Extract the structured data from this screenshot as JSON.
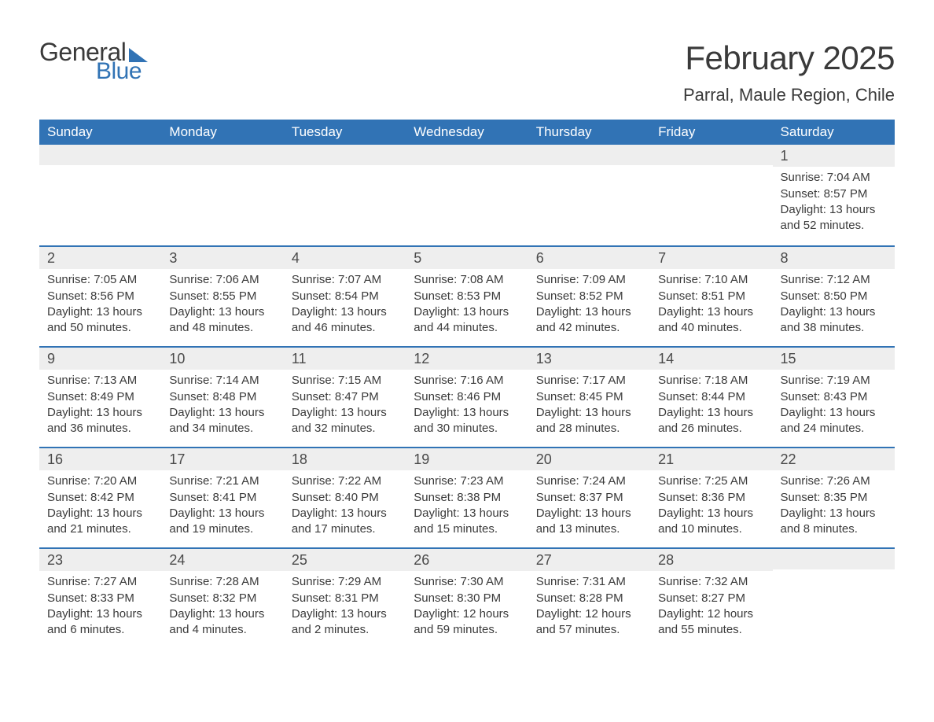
{
  "logo": {
    "word1": "General",
    "word2": "Blue"
  },
  "title": "February 2025",
  "location": "Parral, Maule Region, Chile",
  "colors": {
    "brand_blue": "#3173b5",
    "band_gray": "#eeeeee",
    "text": "#3a3a3a",
    "white": "#ffffff"
  },
  "typography": {
    "title_fontsize": 42,
    "location_fontsize": 22,
    "dow_fontsize": 17,
    "daynum_fontsize": 18,
    "body_fontsize": 15
  },
  "days_of_week": [
    "Sunday",
    "Monday",
    "Tuesday",
    "Wednesday",
    "Thursday",
    "Friday",
    "Saturday"
  ],
  "layout": {
    "first_day_column": 6,
    "num_days": 28,
    "weeks": 5
  },
  "weeks": [
    [
      null,
      null,
      null,
      null,
      null,
      null,
      {
        "n": "1",
        "sunrise": "Sunrise: 7:04 AM",
        "sunset": "Sunset: 8:57 PM",
        "daylight": "Daylight: 13 hours and 52 minutes."
      }
    ],
    [
      {
        "n": "2",
        "sunrise": "Sunrise: 7:05 AM",
        "sunset": "Sunset: 8:56 PM",
        "daylight": "Daylight: 13 hours and 50 minutes."
      },
      {
        "n": "3",
        "sunrise": "Sunrise: 7:06 AM",
        "sunset": "Sunset: 8:55 PM",
        "daylight": "Daylight: 13 hours and 48 minutes."
      },
      {
        "n": "4",
        "sunrise": "Sunrise: 7:07 AM",
        "sunset": "Sunset: 8:54 PM",
        "daylight": "Daylight: 13 hours and 46 minutes."
      },
      {
        "n": "5",
        "sunrise": "Sunrise: 7:08 AM",
        "sunset": "Sunset: 8:53 PM",
        "daylight": "Daylight: 13 hours and 44 minutes."
      },
      {
        "n": "6",
        "sunrise": "Sunrise: 7:09 AM",
        "sunset": "Sunset: 8:52 PM",
        "daylight": "Daylight: 13 hours and 42 minutes."
      },
      {
        "n": "7",
        "sunrise": "Sunrise: 7:10 AM",
        "sunset": "Sunset: 8:51 PM",
        "daylight": "Daylight: 13 hours and 40 minutes."
      },
      {
        "n": "8",
        "sunrise": "Sunrise: 7:12 AM",
        "sunset": "Sunset: 8:50 PM",
        "daylight": "Daylight: 13 hours and 38 minutes."
      }
    ],
    [
      {
        "n": "9",
        "sunrise": "Sunrise: 7:13 AM",
        "sunset": "Sunset: 8:49 PM",
        "daylight": "Daylight: 13 hours and 36 minutes."
      },
      {
        "n": "10",
        "sunrise": "Sunrise: 7:14 AM",
        "sunset": "Sunset: 8:48 PM",
        "daylight": "Daylight: 13 hours and 34 minutes."
      },
      {
        "n": "11",
        "sunrise": "Sunrise: 7:15 AM",
        "sunset": "Sunset: 8:47 PM",
        "daylight": "Daylight: 13 hours and 32 minutes."
      },
      {
        "n": "12",
        "sunrise": "Sunrise: 7:16 AM",
        "sunset": "Sunset: 8:46 PM",
        "daylight": "Daylight: 13 hours and 30 minutes."
      },
      {
        "n": "13",
        "sunrise": "Sunrise: 7:17 AM",
        "sunset": "Sunset: 8:45 PM",
        "daylight": "Daylight: 13 hours and 28 minutes."
      },
      {
        "n": "14",
        "sunrise": "Sunrise: 7:18 AM",
        "sunset": "Sunset: 8:44 PM",
        "daylight": "Daylight: 13 hours and 26 minutes."
      },
      {
        "n": "15",
        "sunrise": "Sunrise: 7:19 AM",
        "sunset": "Sunset: 8:43 PM",
        "daylight": "Daylight: 13 hours and 24 minutes."
      }
    ],
    [
      {
        "n": "16",
        "sunrise": "Sunrise: 7:20 AM",
        "sunset": "Sunset: 8:42 PM",
        "daylight": "Daylight: 13 hours and 21 minutes."
      },
      {
        "n": "17",
        "sunrise": "Sunrise: 7:21 AM",
        "sunset": "Sunset: 8:41 PM",
        "daylight": "Daylight: 13 hours and 19 minutes."
      },
      {
        "n": "18",
        "sunrise": "Sunrise: 7:22 AM",
        "sunset": "Sunset: 8:40 PM",
        "daylight": "Daylight: 13 hours and 17 minutes."
      },
      {
        "n": "19",
        "sunrise": "Sunrise: 7:23 AM",
        "sunset": "Sunset: 8:38 PM",
        "daylight": "Daylight: 13 hours and 15 minutes."
      },
      {
        "n": "20",
        "sunrise": "Sunrise: 7:24 AM",
        "sunset": "Sunset: 8:37 PM",
        "daylight": "Daylight: 13 hours and 13 minutes."
      },
      {
        "n": "21",
        "sunrise": "Sunrise: 7:25 AM",
        "sunset": "Sunset: 8:36 PM",
        "daylight": "Daylight: 13 hours and 10 minutes."
      },
      {
        "n": "22",
        "sunrise": "Sunrise: 7:26 AM",
        "sunset": "Sunset: 8:35 PM",
        "daylight": "Daylight: 13 hours and 8 minutes."
      }
    ],
    [
      {
        "n": "23",
        "sunrise": "Sunrise: 7:27 AM",
        "sunset": "Sunset: 8:33 PM",
        "daylight": "Daylight: 13 hours and 6 minutes."
      },
      {
        "n": "24",
        "sunrise": "Sunrise: 7:28 AM",
        "sunset": "Sunset: 8:32 PM",
        "daylight": "Daylight: 13 hours and 4 minutes."
      },
      {
        "n": "25",
        "sunrise": "Sunrise: 7:29 AM",
        "sunset": "Sunset: 8:31 PM",
        "daylight": "Daylight: 13 hours and 2 minutes."
      },
      {
        "n": "26",
        "sunrise": "Sunrise: 7:30 AM",
        "sunset": "Sunset: 8:30 PM",
        "daylight": "Daylight: 12 hours and 59 minutes."
      },
      {
        "n": "27",
        "sunrise": "Sunrise: 7:31 AM",
        "sunset": "Sunset: 8:28 PM",
        "daylight": "Daylight: 12 hours and 57 minutes."
      },
      {
        "n": "28",
        "sunrise": "Sunrise: 7:32 AM",
        "sunset": "Sunset: 8:27 PM",
        "daylight": "Daylight: 12 hours and 55 minutes."
      },
      null
    ]
  ]
}
